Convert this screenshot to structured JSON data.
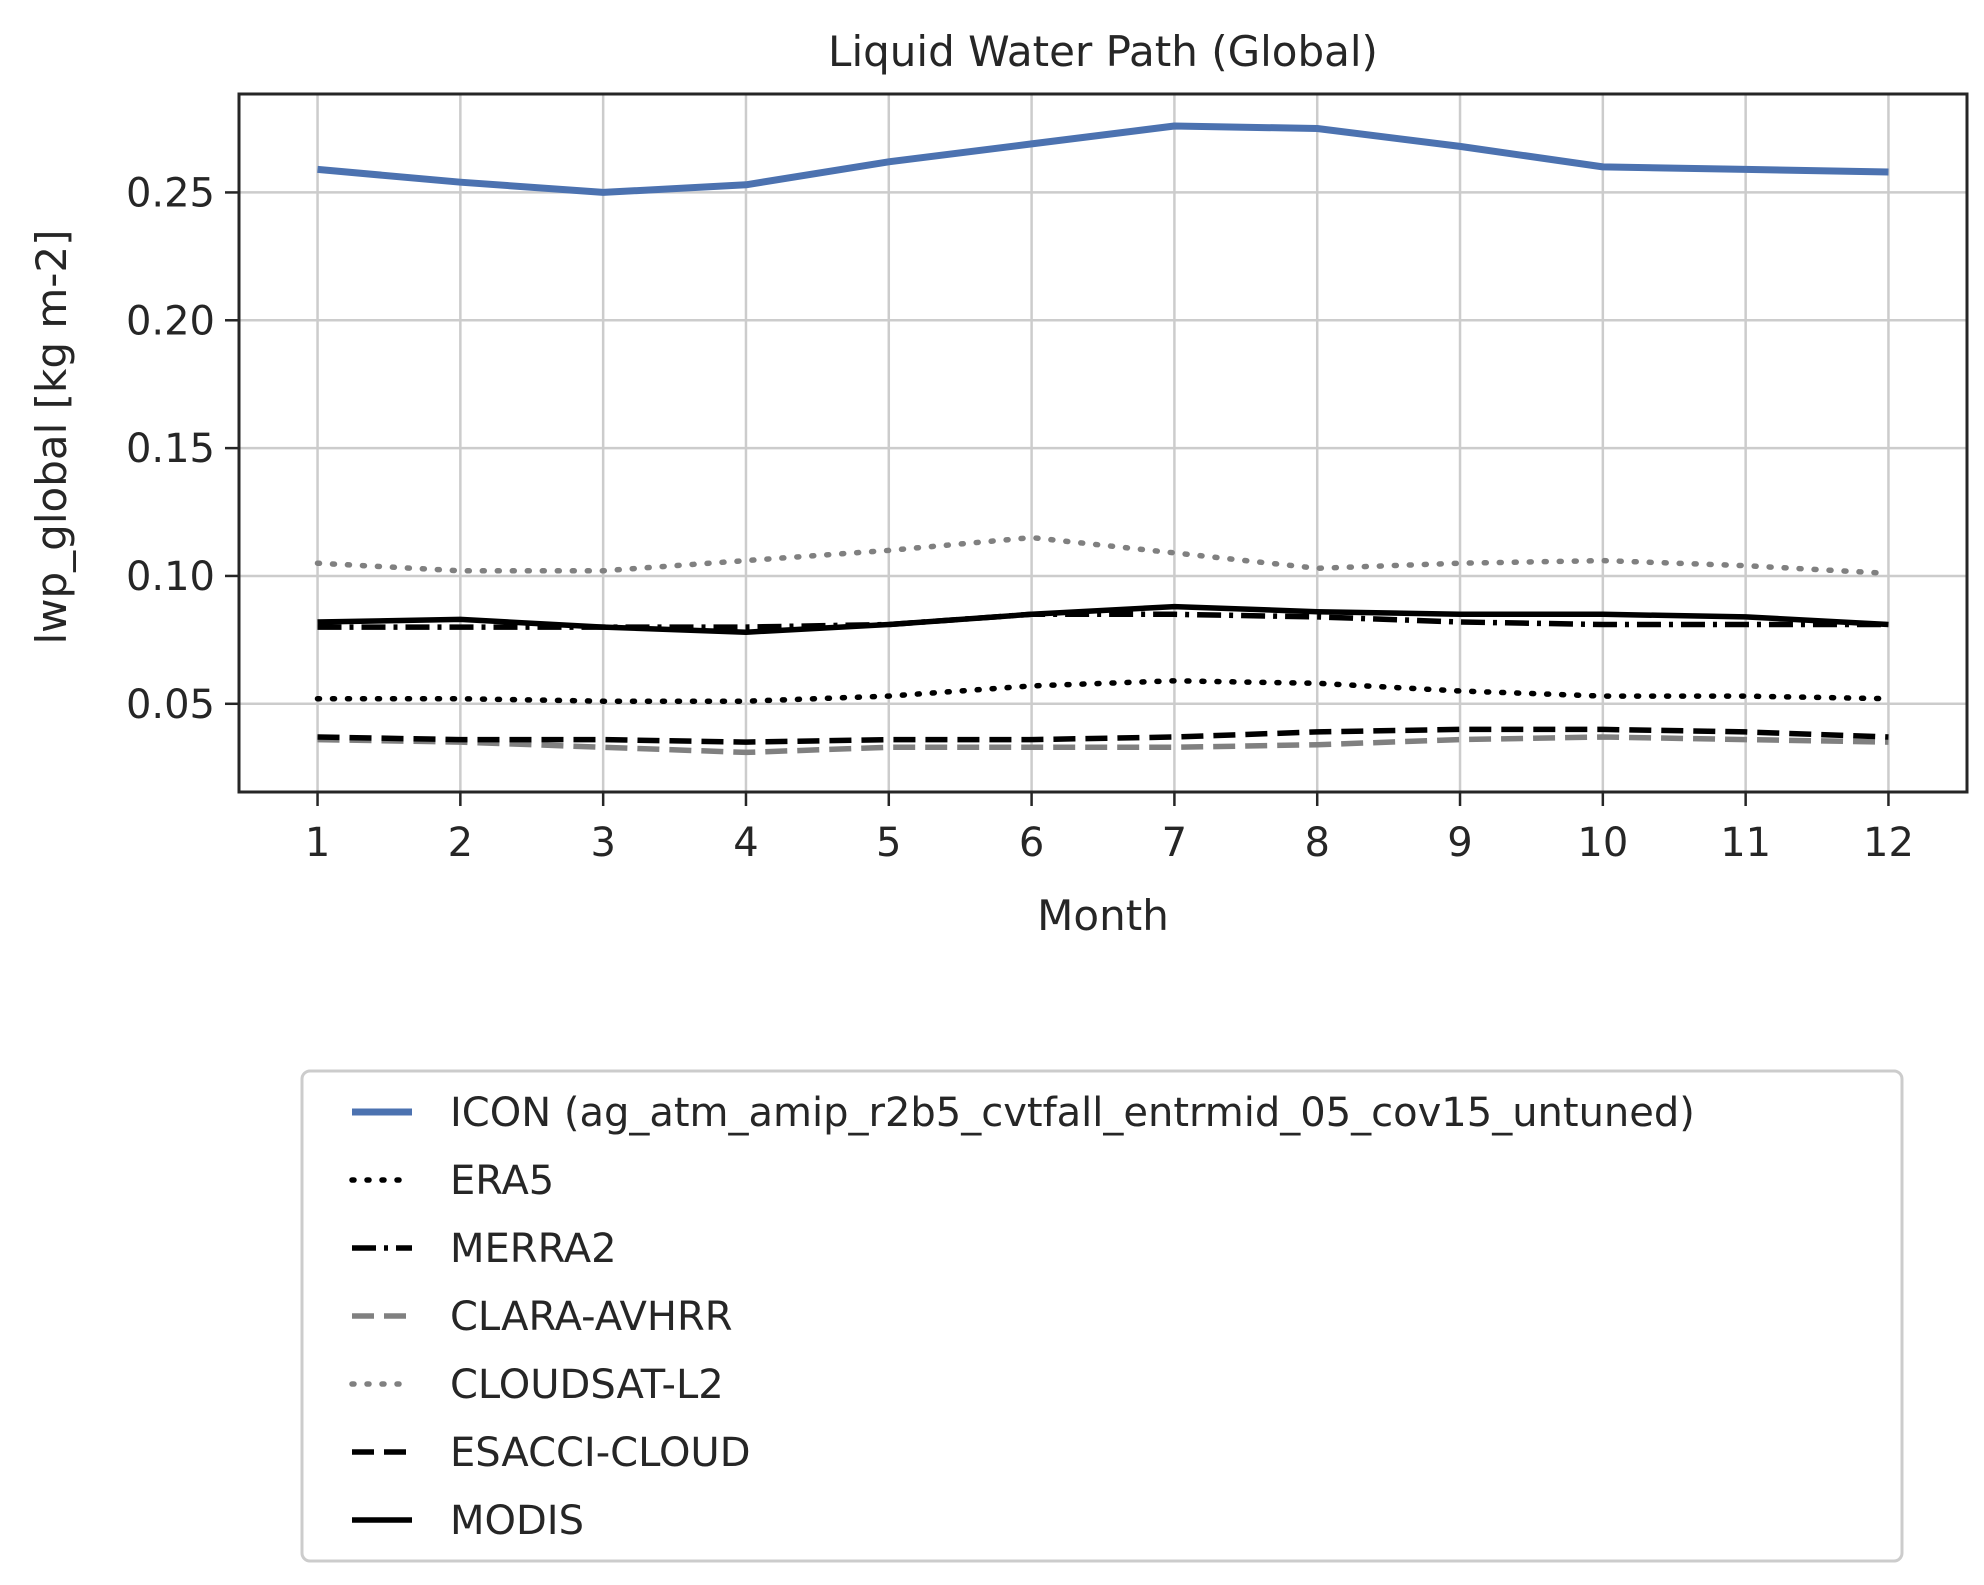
{
  "chart_data": {
    "type": "line",
    "title": "Liquid Water Path (Global)",
    "xlabel": "Month",
    "ylabel": "lwp_global [kg m-2]",
    "x": [
      1,
      2,
      3,
      4,
      5,
      6,
      7,
      8,
      9,
      10,
      11,
      12
    ],
    "x_ticks": [
      "1",
      "2",
      "3",
      "4",
      "5",
      "6",
      "7",
      "8",
      "9",
      "10",
      "11",
      "12"
    ],
    "y_ticks": [
      "0.05",
      "0.10",
      "0.15",
      "0.20",
      "0.25"
    ],
    "xlim": [
      0.45,
      12.55
    ],
    "ylim": [
      0.0155,
      0.2885
    ],
    "grid": true,
    "legend_position": "below",
    "series": [
      {
        "name": "ICON (ag_atm_amip_r2b5_cvtfall_entrmid_05_cov15_untuned)",
        "color": "#4c72b0",
        "style": "solid",
        "values": [
          0.259,
          0.254,
          0.25,
          0.253,
          0.262,
          0.269,
          0.276,
          0.275,
          0.268,
          0.26,
          0.259,
          0.258
        ]
      },
      {
        "name": "ERA5",
        "color": "#000000",
        "style": "dotted",
        "values": [
          0.052,
          0.052,
          0.051,
          0.051,
          0.053,
          0.057,
          0.059,
          0.058,
          0.055,
          0.053,
          0.053,
          0.052
        ]
      },
      {
        "name": "MERRA2",
        "color": "#000000",
        "style": "dashdot",
        "values": [
          0.08,
          0.08,
          0.08,
          0.08,
          0.081,
          0.085,
          0.085,
          0.084,
          0.082,
          0.081,
          0.081,
          0.081
        ]
      },
      {
        "name": "CLARA-AVHRR",
        "color": "#808080",
        "style": "dashed",
        "values": [
          0.036,
          0.035,
          0.033,
          0.031,
          0.033,
          0.033,
          0.033,
          0.034,
          0.036,
          0.037,
          0.036,
          0.035
        ]
      },
      {
        "name": "CLOUDSAT-L2",
        "color": "#808080",
        "style": "dotted",
        "values": [
          0.105,
          0.102,
          0.102,
          0.106,
          0.11,
          0.115,
          0.109,
          0.103,
          0.105,
          0.106,
          0.104,
          0.101
        ]
      },
      {
        "name": "ESACCI-CLOUD",
        "color": "#000000",
        "style": "dashed",
        "values": [
          0.037,
          0.036,
          0.036,
          0.035,
          0.036,
          0.036,
          0.037,
          0.039,
          0.04,
          0.04,
          0.039,
          0.037
        ]
      },
      {
        "name": "MODIS",
        "color": "#000000",
        "style": "solid",
        "values": [
          0.082,
          0.083,
          0.08,
          0.078,
          0.081,
          0.085,
          0.088,
          0.086,
          0.085,
          0.085,
          0.084,
          0.081
        ]
      }
    ]
  }
}
